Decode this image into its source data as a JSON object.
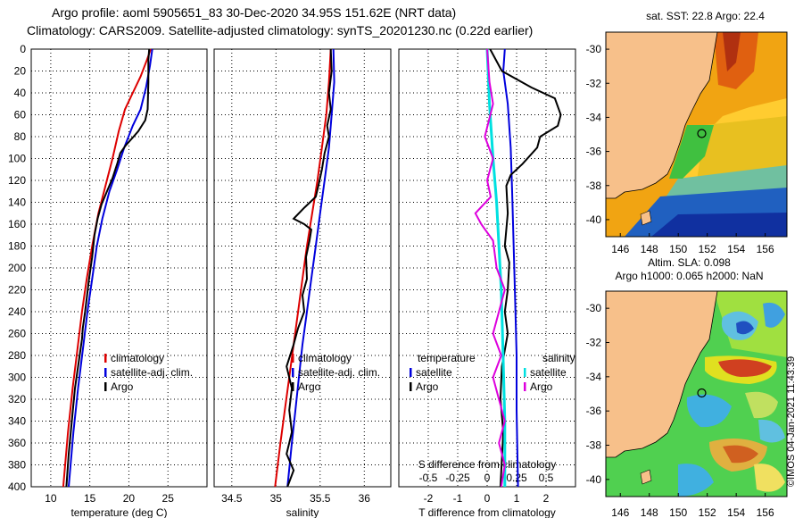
{
  "header": {
    "title_line1": "Argo profile: aoml 5905651_83 30-Dec-2020 34.95S 151.62E (NRT data)",
    "title_line2": "Climatology: CARS2009. Satellite-adjusted climatology: synTS_20201230.nc (0.22d earlier)"
  },
  "colors": {
    "climatology": "#dd0000",
    "satellite": "#0000dd",
    "argo": "#000000",
    "sat_diff": "#00e0e0",
    "argo_diff": "#dd00dd"
  },
  "chart_data": [
    {
      "type": "line",
      "name": "temperature",
      "xlabel": "temperature (deg C)",
      "ylabel": "",
      "xlim": [
        7.5,
        30
      ],
      "ylim": [
        400,
        0
      ],
      "xticks": [
        "10",
        "15",
        "20",
        "25"
      ],
      "xtick_values": [
        10,
        15,
        20,
        25
      ],
      "yticks": [
        "0",
        "20",
        "40",
        "60",
        "80",
        "100",
        "120",
        "140",
        "160",
        "180",
        "200",
        "220",
        "240",
        "260",
        "280",
        "300",
        "320",
        "340",
        "360",
        "380",
        "400"
      ],
      "ytick_values": [
        0,
        20,
        40,
        60,
        80,
        100,
        120,
        140,
        160,
        180,
        200,
        220,
        240,
        260,
        280,
        300,
        320,
        340,
        360,
        380,
        400
      ],
      "legend": [
        "climatology",
        "satellite-adj. clim.",
        "Argo"
      ],
      "series": [
        {
          "name": "climatology",
          "color": "#dd0000",
          "points": [
            [
              22.8,
              0
            ],
            [
              22.3,
              10
            ],
            [
              21.5,
              25
            ],
            [
              20.5,
              40
            ],
            [
              19.5,
              55
            ],
            [
              18.7,
              75
            ],
            [
              17.9,
              100
            ],
            [
              17.0,
              125
            ],
            [
              16.1,
              150
            ],
            [
              15.3,
              180
            ],
            [
              14.6,
              210
            ],
            [
              14.0,
              240
            ],
            [
              13.4,
              275
            ],
            [
              12.8,
              310
            ],
            [
              12.2,
              350
            ],
            [
              11.6,
              400
            ]
          ]
        },
        {
          "name": "satellite",
          "color": "#0000dd",
          "points": [
            [
              23.0,
              0
            ],
            [
              22.7,
              15
            ],
            [
              22.2,
              35
            ],
            [
              21.5,
              55
            ],
            [
              20.5,
              70
            ],
            [
              19.4,
              90
            ],
            [
              18.5,
              110
            ],
            [
              17.5,
              130
            ],
            [
              16.6,
              155
            ],
            [
              15.9,
              180
            ],
            [
              15.3,
              210
            ],
            [
              14.7,
              240
            ],
            [
              14.1,
              275
            ],
            [
              13.5,
              310
            ],
            [
              12.9,
              350
            ],
            [
              12.3,
              400
            ]
          ]
        },
        {
          "name": "Argo",
          "color": "#000000",
          "points": [
            [
              22.6,
              0
            ],
            [
              22.5,
              10
            ],
            [
              22.5,
              30
            ],
            [
              22.4,
              55
            ],
            [
              22.1,
              65
            ],
            [
              21.2,
              75
            ],
            [
              20.6,
              80
            ],
            [
              19.6,
              88
            ],
            [
              18.9,
              95
            ],
            [
              18.5,
              105
            ],
            [
              17.9,
              118
            ],
            [
              17.2,
              130
            ],
            [
              16.5,
              142
            ],
            [
              16.0,
              155
            ],
            [
              15.6,
              170
            ],
            [
              15.3,
              190
            ],
            [
              14.9,
              210
            ],
            [
              14.4,
              240
            ],
            [
              14.1,
              255
            ],
            [
              14.0,
              265
            ],
            [
              13.6,
              285
            ],
            [
              13.1,
              310
            ],
            [
              12.7,
              340
            ],
            [
              12.3,
              370
            ],
            [
              12.0,
              400
            ]
          ]
        }
      ]
    },
    {
      "type": "line",
      "name": "salinity",
      "xlabel": "salinity",
      "ylabel": "",
      "xlim": [
        34.3,
        36.3
      ],
      "ylim": [
        400,
        0
      ],
      "xticks": [
        "34.5",
        "35",
        "35.5",
        "36"
      ],
      "xtick_values": [
        34.5,
        35,
        35.5,
        36
      ],
      "legend": [
        "climatology",
        "satellite-adj. clim.",
        "Argo"
      ],
      "series": [
        {
          "name": "climatology",
          "color": "#dd0000",
          "points": [
            [
              35.62,
              0
            ],
            [
              35.6,
              30
            ],
            [
              35.57,
              60
            ],
            [
              35.52,
              90
            ],
            [
              35.47,
              120
            ],
            [
              35.41,
              150
            ],
            [
              35.35,
              180
            ],
            [
              35.3,
              210
            ],
            [
              35.25,
              240
            ],
            [
              35.2,
              270
            ],
            [
              35.15,
              300
            ],
            [
              35.1,
              330
            ],
            [
              35.05,
              360
            ],
            [
              34.99,
              400
            ]
          ]
        },
        {
          "name": "satellite",
          "color": "#0000dd",
          "points": [
            [
              35.65,
              0
            ],
            [
              35.66,
              30
            ],
            [
              35.63,
              60
            ],
            [
              35.6,
              90
            ],
            [
              35.55,
              120
            ],
            [
              35.5,
              150
            ],
            [
              35.45,
              180
            ],
            [
              35.4,
              210
            ],
            [
              35.35,
              240
            ],
            [
              35.3,
              270
            ],
            [
              35.26,
              300
            ],
            [
              35.22,
              330
            ],
            [
              35.18,
              360
            ],
            [
              35.13,
              400
            ]
          ]
        },
        {
          "name": "Argo",
          "color": "#000000",
          "points": [
            [
              35.62,
              0
            ],
            [
              35.63,
              20
            ],
            [
              35.6,
              40
            ],
            [
              35.62,
              55
            ],
            [
              35.58,
              70
            ],
            [
              35.6,
              80
            ],
            [
              35.55,
              95
            ],
            [
              35.52,
              110
            ],
            [
              35.48,
              125
            ],
            [
              35.45,
              135
            ],
            [
              35.32,
              145
            ],
            [
              35.2,
              155
            ],
            [
              35.32,
              160
            ],
            [
              35.4,
              165
            ],
            [
              35.38,
              175
            ],
            [
              35.34,
              190
            ],
            [
              35.35,
              210
            ],
            [
              35.3,
              225
            ],
            [
              35.32,
              240
            ],
            [
              35.25,
              255
            ],
            [
              35.2,
              270
            ],
            [
              35.12,
              290
            ],
            [
              35.18,
              310
            ],
            [
              35.15,
              330
            ],
            [
              35.18,
              350
            ],
            [
              35.12,
              370
            ],
            [
              35.2,
              385
            ],
            [
              35.13,
              400
            ]
          ]
        }
      ]
    },
    {
      "type": "line",
      "name": "difference",
      "xlabel": "T difference from climatology",
      "x2label": "S difference from climatology",
      "xlim": [
        -3,
        3
      ],
      "x2lim": [
        -0.75,
        0.75
      ],
      "ylim": [
        400,
        0
      ],
      "xticks": [
        "-2",
        "-1",
        "0",
        "1",
        "2"
      ],
      "xtick_values": [
        -2,
        -1,
        0,
        1,
        2
      ],
      "x2ticks": [
        "-0.5",
        "-0.25",
        "0",
        "0.25",
        "0.5"
      ],
      "x2tick_values": [
        -0.5,
        -0.25,
        0,
        0.25,
        0.5
      ],
      "legend_left": [
        "temperature",
        "satellite",
        "Argo"
      ],
      "legend_right": [
        "salinity",
        "satellite",
        "Argo"
      ],
      "series": [
        {
          "name": "T satellite",
          "color": "#0000dd",
          "points": [
            [
              0.6,
              0
            ],
            [
              0.55,
              20
            ],
            [
              0.7,
              50
            ],
            [
              0.8,
              90
            ],
            [
              0.85,
              130
            ],
            [
              0.9,
              180
            ],
            [
              0.95,
              230
            ],
            [
              1.0,
              280
            ],
            [
              1.0,
              330
            ],
            [
              1.05,
              400
            ]
          ]
        },
        {
          "name": "T Argo",
          "color": "#000000",
          "points": [
            [
              0.1,
              0
            ],
            [
              0.5,
              20
            ],
            [
              1.5,
              35
            ],
            [
              2.3,
              45
            ],
            [
              2.5,
              60
            ],
            [
              2.4,
              70
            ],
            [
              1.8,
              80
            ],
            [
              1.7,
              90
            ],
            [
              1.2,
              105
            ],
            [
              0.8,
              115
            ],
            [
              0.65,
              125
            ],
            [
              0.7,
              150
            ],
            [
              0.6,
              180
            ],
            [
              0.75,
              195
            ],
            [
              0.7,
              220
            ],
            [
              0.6,
              240
            ],
            [
              0.7,
              260
            ],
            [
              0.5,
              290
            ],
            [
              0.45,
              320
            ],
            [
              0.55,
              350
            ],
            [
              0.45,
              400
            ]
          ]
        },
        {
          "name": "S satellite",
          "color": "#00e0e0",
          "points": [
            [
              0.0,
              0
            ],
            [
              0.02,
              50
            ],
            [
              0.05,
              100
            ],
            [
              0.08,
              140
            ],
            [
              0.1,
              180
            ],
            [
              0.12,
              220
            ],
            [
              0.13,
              260
            ],
            [
              0.14,
              300
            ],
            [
              0.15,
              340
            ],
            [
              0.15,
              400
            ]
          ]
        },
        {
          "name": "S Argo",
          "color": "#dd00dd",
          "points": [
            [
              0.0,
              0
            ],
            [
              0.02,
              30
            ],
            [
              0.05,
              50
            ],
            [
              -0.02,
              80
            ],
            [
              0.05,
              100
            ],
            [
              0.0,
              120
            ],
            [
              0.03,
              135
            ],
            [
              -0.1,
              150
            ],
            [
              -0.05,
              160
            ],
            [
              0.05,
              175
            ],
            [
              0.08,
              200
            ],
            [
              0.15,
              220
            ],
            [
              0.1,
              240
            ],
            [
              0.05,
              260
            ],
            [
              0.12,
              280
            ],
            [
              0.05,
              300
            ],
            [
              0.1,
              320
            ],
            [
              0.15,
              340
            ],
            [
              0.1,
              360
            ],
            [
              0.15,
              380
            ],
            [
              0.12,
              400
            ]
          ]
        }
      ]
    },
    {
      "type": "heatmap",
      "name": "sst_map",
      "title": "sat. SST: 22.8 Argo: 22.4",
      "xticks": [
        "146",
        "148",
        "150",
        "152",
        "154",
        "156"
      ],
      "xtick_values": [
        146,
        148,
        150,
        152,
        154,
        156
      ],
      "yticks": [
        "-30",
        "-32",
        "-34",
        "-36",
        "-38",
        "-40"
      ],
      "ytick_values": [
        -30,
        -32,
        -34,
        -36,
        -38,
        -40
      ],
      "xlim": [
        145,
        157.5
      ],
      "ylim": [
        -41,
        -29
      ],
      "argo_position": [
        151.62,
        -34.95
      ]
    },
    {
      "type": "heatmap",
      "name": "sla_map",
      "title": "Altim. SLA: 0.098",
      "subtitle": "Argo h1000: 0.065 h2000: NaN",
      "xticks": [
        "146",
        "148",
        "150",
        "152",
        "154",
        "156"
      ],
      "xtick_values": [
        146,
        148,
        150,
        152,
        154,
        156
      ],
      "yticks": [
        "-30",
        "-32",
        "-34",
        "-36",
        "-38",
        "-40"
      ],
      "ytick_values": [
        -30,
        -32,
        -34,
        -36,
        -38,
        -40
      ],
      "xlim": [
        145,
        157.5
      ],
      "ylim": [
        -41,
        -29
      ],
      "argo_position": [
        151.62,
        -34.95
      ]
    }
  ],
  "footer": {
    "credit": "©IMOS 04-Jan-2021 11:43:39"
  }
}
